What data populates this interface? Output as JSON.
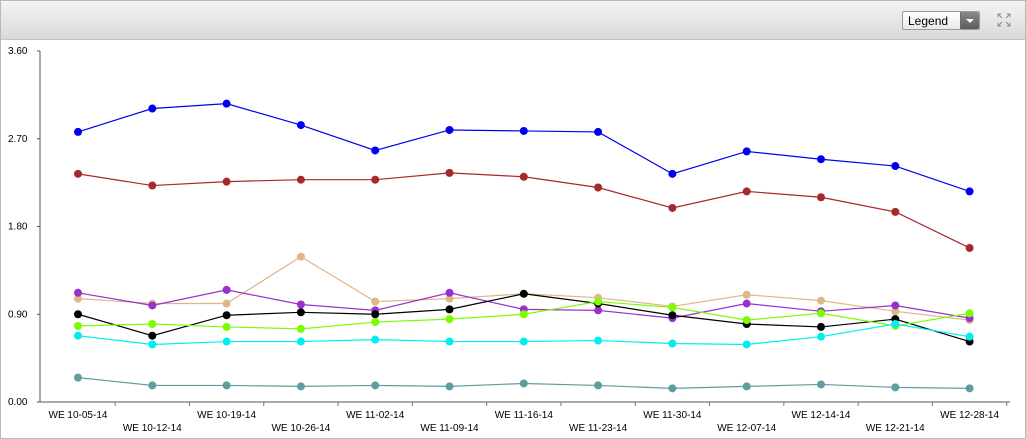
{
  "toolbar": {
    "legend_label": "Legend"
  },
  "chart_data": {
    "type": "line",
    "categories": [
      "WE 10-05-14",
      "WE 10-12-14",
      "WE 10-19-14",
      "WE 10-26-14",
      "WE 11-02-14",
      "WE 11-09-14",
      "WE 11-16-14",
      "WE 11-23-14",
      "WE 11-30-14",
      "WE 12-07-14",
      "WE 12-14-14",
      "WE 12-21-14",
      "WE 12-28-14"
    ],
    "y_ticks": [
      "0.00",
      "0.90",
      "1.80",
      "2.70",
      "3.60"
    ],
    "ylim": [
      0,
      3.6
    ],
    "grid": false,
    "series": [
      {
        "color": "#0000ee",
        "values": [
          2.77,
          3.01,
          3.06,
          2.84,
          2.58,
          2.79,
          2.78,
          2.77,
          2.34,
          2.57,
          2.49,
          2.42,
          2.16
        ]
      },
      {
        "color": "#a52a2a",
        "values": [
          2.34,
          2.22,
          2.26,
          2.28,
          2.28,
          2.35,
          2.31,
          2.2,
          1.99,
          2.16,
          2.1,
          1.95,
          1.58
        ]
      },
      {
        "color": "#deb887",
        "values": [
          1.06,
          1.01,
          1.01,
          1.49,
          1.03,
          1.06,
          1.11,
          1.07,
          0.98,
          1.1,
          1.04,
          0.93,
          0.84
        ]
      },
      {
        "color": "#9932cc",
        "values": [
          1.12,
          0.99,
          1.15,
          1.0,
          0.94,
          1.12,
          0.95,
          0.94,
          0.86,
          1.01,
          0.93,
          0.99,
          0.86
        ]
      },
      {
        "color": "#000000",
        "values": [
          0.9,
          0.68,
          0.89,
          0.92,
          0.9,
          0.95,
          1.11,
          1.01,
          0.89,
          0.8,
          0.77,
          0.85,
          0.62
        ]
      },
      {
        "color": "#7cfc00",
        "values": [
          0.78,
          0.8,
          0.77,
          0.75,
          0.82,
          0.85,
          0.9,
          1.03,
          0.97,
          0.84,
          0.91,
          0.78,
          0.91
        ]
      },
      {
        "color": "#00eeee",
        "values": [
          0.68,
          0.59,
          0.62,
          0.62,
          0.64,
          0.62,
          0.62,
          0.63,
          0.6,
          0.59,
          0.67,
          0.8,
          0.67
        ]
      },
      {
        "color": "#5f9ea0",
        "values": [
          0.25,
          0.17,
          0.17,
          0.16,
          0.17,
          0.16,
          0.19,
          0.17,
          0.14,
          0.16,
          0.18,
          0.15,
          0.14
        ]
      }
    ]
  }
}
